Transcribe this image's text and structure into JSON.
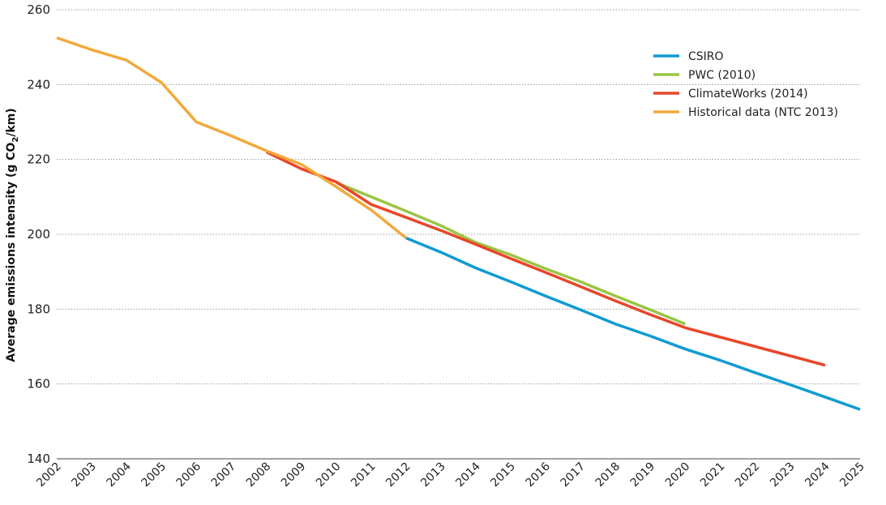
{
  "chart_data": {
    "type": "line",
    "title": "",
    "xlabel": "",
    "ylabel": "Average emissions intensity (g CO",
    "ylabel_sub": "2",
    "ylabel_suffix": "/km)",
    "ylim": [
      140,
      260
    ],
    "yticks": [
      "140",
      "160",
      "180",
      "200",
      "220",
      "240",
      "260"
    ],
    "categories": [
      "2002",
      "2003",
      "2004",
      "2005",
      "2006",
      "2007",
      "2008",
      "2009",
      "2010",
      "2011",
      "2012",
      "2013",
      "2014",
      "2015",
      "2016",
      "2017",
      "2018",
      "2019",
      "2020",
      "2021",
      "2022",
      "2023",
      "2024",
      "2025"
    ],
    "grid": true,
    "legend_position": "top-right",
    "series": [
      {
        "name": "CSIRO",
        "color": "#0f9bd2",
        "x": [
          "2012",
          "2013",
          "2014",
          "2015",
          "2016",
          "2017",
          "2018",
          "2019",
          "2020",
          "2021",
          "2022",
          "2023",
          "2024",
          "2025"
        ],
        "values": [
          199.0,
          195.2,
          191.0,
          187.3,
          183.5,
          179.8,
          176.0,
          172.8,
          169.3,
          166.3,
          163.0,
          159.8,
          156.5,
          153.2
        ]
      },
      {
        "name": "PWC (2010)",
        "color": "#9ac543",
        "x": [
          "2010",
          "2011",
          "2012",
          "2013",
          "2014",
          "2015",
          "2016",
          "2017",
          "2018",
          "2019",
          "2020"
        ],
        "values": [
          213.8,
          210.0,
          206.2,
          202.3,
          197.8,
          194.5,
          190.8,
          187.3,
          183.5,
          179.8,
          176.0
        ]
      },
      {
        "name": "ClimateWorks (2014)",
        "color": "#e8462a",
        "x": [
          "2008",
          "2009",
          "2010",
          "2011",
          "2012",
          "2013",
          "2014",
          "2015",
          "2016",
          "2017",
          "2018",
          "2019",
          "2020",
          "2021",
          "2022",
          "2023",
          "2024"
        ],
        "values": [
          222.0,
          217.5,
          214.0,
          208.0,
          204.5,
          201.0,
          197.3,
          193.5,
          189.8,
          186.0,
          182.2,
          178.5,
          175.0,
          172.5,
          170.0,
          167.5,
          165.0
        ]
      },
      {
        "name": "Historical data (NTC 2013)",
        "color": "#f2a93b",
        "x": [
          "2002",
          "2003",
          "2004",
          "2005",
          "2006",
          "2007",
          "2008",
          "2009",
          "2010",
          "2011",
          "2012"
        ],
        "values": [
          252.5,
          249.3,
          246.5,
          240.5,
          230.0,
          226.3,
          222.3,
          218.7,
          212.7,
          206.5,
          199.0
        ]
      }
    ]
  }
}
